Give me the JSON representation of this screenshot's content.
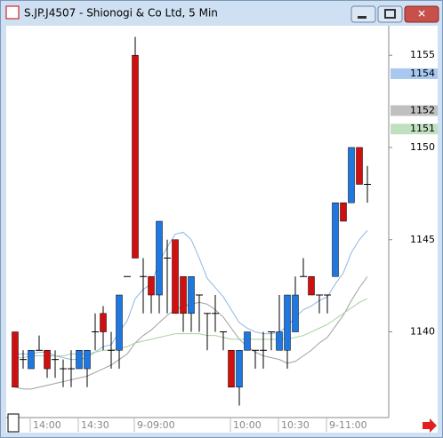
{
  "chart_data": {
    "type": "candlestick",
    "title": "S.JP.J4507 - Shionogi & Co Ltd, 5 Min",
    "categories": [
      null,
      null,
      "14:00",
      null,
      null,
      null,
      null,
      null,
      "14:30",
      null,
      null,
      null,
      null,
      null,
      null,
      "9-09:00",
      null,
      null,
      null,
      null,
      null,
      null,
      null,
      null,
      null,
      null,
      null,
      "10:00",
      null,
      null,
      null,
      null,
      null,
      "10:30",
      null,
      null,
      null,
      null,
      null,
      "9-11:00",
      null,
      null,
      null,
      null,
      null
    ],
    "open": [
      1140,
      1138.5,
      1138,
      1139,
      1139,
      1138.5,
      1138,
      1138,
      1138,
      1138,
      1140,
      1141,
      1139,
      1139,
      1143,
      1155,
      1143,
      1143,
      1142,
      1144,
      1145,
      1143,
      1141,
      1142,
      1141,
      1141,
      1140,
      1139,
      1137,
      1139,
      1139,
      1139,
      1140,
      1139,
      1139,
      1140,
      1143,
      1143,
      1142,
      1142,
      1143,
      1147,
      1147,
      1150,
      1148
    ],
    "high": [
      1140,
      1139,
      1139,
      1139.8,
      1139,
      1139,
      1138.5,
      1139,
      1139,
      1139,
      1141,
      1141.4,
      1140,
      1142,
      1143,
      1156,
      1144,
      1143,
      1146,
      1145,
      1145,
      1143,
      1143,
      1142,
      1141,
      1142,
      1140,
      1139,
      1139,
      1140,
      1139,
      1140,
      1140,
      1142,
      1142,
      1143,
      1144,
      1143,
      1142,
      1142,
      1147,
      1147,
      1150,
      1150,
      1149
    ],
    "low": [
      1137,
      1138,
      1138,
      1139,
      1137.5,
      1137.5,
      1137,
      1137,
      1138,
      1137,
      1139,
      1139,
      1138,
      1138,
      1143,
      1144,
      1141,
      1141,
      1141,
      1141,
      1141,
      1140,
      1140,
      1140,
      1139,
      1140,
      1139,
      1137,
      1136,
      1139,
      1138,
      1138,
      1139,
      1139,
      1138,
      1140,
      1143,
      1142,
      1141,
      1141,
      1143,
      1146,
      1147,
      1148,
      1147
    ],
    "close": [
      1137,
      1138.5,
      1139,
      1139,
      1138,
      1138.5,
      1138,
      1138,
      1139,
      1139,
      1140,
      1140,
      1139,
      1142,
      1143,
      1144,
      1143,
      1142,
      1146,
      1144,
      1141,
      1141,
      1143,
      1142,
      1141,
      1141,
      1140,
      1137,
      1139,
      1140,
      1139,
      1139,
      1140,
      1140,
      1142,
      1142,
      1143,
      1142,
      1142,
      1142,
      1147,
      1146,
      1150,
      1148,
      1148
    ],
    "up_color": "#1f78e0",
    "down_color": "#d01010",
    "series": [
      {
        "color": "#8fb8e0",
        "values": [
          1138.8,
          1138.8,
          1138.8,
          1138.9,
          1138.9,
          1138.7,
          1138.6,
          1138.5,
          1138.5,
          1138.6,
          1138.9,
          1139.2,
          1139.3,
          1140.0,
          1140.6,
          1141.8,
          1142.3,
          1142.6,
          1143.8,
          1144.6,
          1145.3,
          1145.4,
          1145.0,
          1144.0,
          1142.9,
          1142.4,
          1141.9,
          1141.2,
          1140.5,
          1140.2,
          1140.0,
          1139.9,
          1139.9,
          1140.0,
          1140.3,
          1140.8,
          1141.2,
          1141.4,
          1141.7,
          1141.9,
          1142.6,
          1143.2,
          1144.3,
          1145.0,
          1145.5
        ]
      },
      {
        "color": "#a0a0a0",
        "values": [
          1137.0,
          1136.9,
          1136.9,
          1137.0,
          1137.1,
          1137.2,
          1137.3,
          1137.4,
          1137.5,
          1137.6,
          1137.8,
          1138.0,
          1138.2,
          1138.5,
          1138.8,
          1139.4,
          1139.8,
          1140.1,
          1140.5,
          1140.9,
          1141.2,
          1141.4,
          1141.5,
          1141.6,
          1141.5,
          1141.2,
          1140.8,
          1140.2,
          1139.6,
          1139.2,
          1138.9,
          1138.7,
          1138.6,
          1138.5,
          1138.3,
          1138.4,
          1138.7,
          1139.0,
          1139.4,
          1139.7,
          1140.3,
          1140.9,
          1141.7,
          1142.4,
          1143.0
        ]
      },
      {
        "color": "#a8d0a0",
        "values": [
          1138.6,
          1138.6,
          1138.7,
          1138.7,
          1138.7,
          1138.7,
          1138.7,
          1138.8,
          1138.8,
          1138.8,
          1138.9,
          1139.0,
          1139.0,
          1139.1,
          1139.2,
          1139.4,
          1139.5,
          1139.6,
          1139.7,
          1139.8,
          1139.9,
          1139.9,
          1139.9,
          1139.9,
          1139.8,
          1139.8,
          1139.7,
          1139.6,
          1139.6,
          1139.6,
          1139.6,
          1139.6,
          1139.6,
          1139.6,
          1139.6,
          1139.7,
          1139.8,
          1140.0,
          1140.2,
          1140.4,
          1140.7,
          1141.0,
          1141.3,
          1141.6,
          1141.8
        ]
      }
    ],
    "price_markers": [
      {
        "value": 1154,
        "color": "#a8c8f0"
      },
      {
        "value": 1152,
        "color": "#c0c0c0"
      },
      {
        "value": 1151,
        "color": "#c0e0c0"
      }
    ],
    "ylim": [
      1135.4,
      1156.6
    ],
    "yticks": [
      1140,
      1145,
      1150,
      1155
    ]
  }
}
